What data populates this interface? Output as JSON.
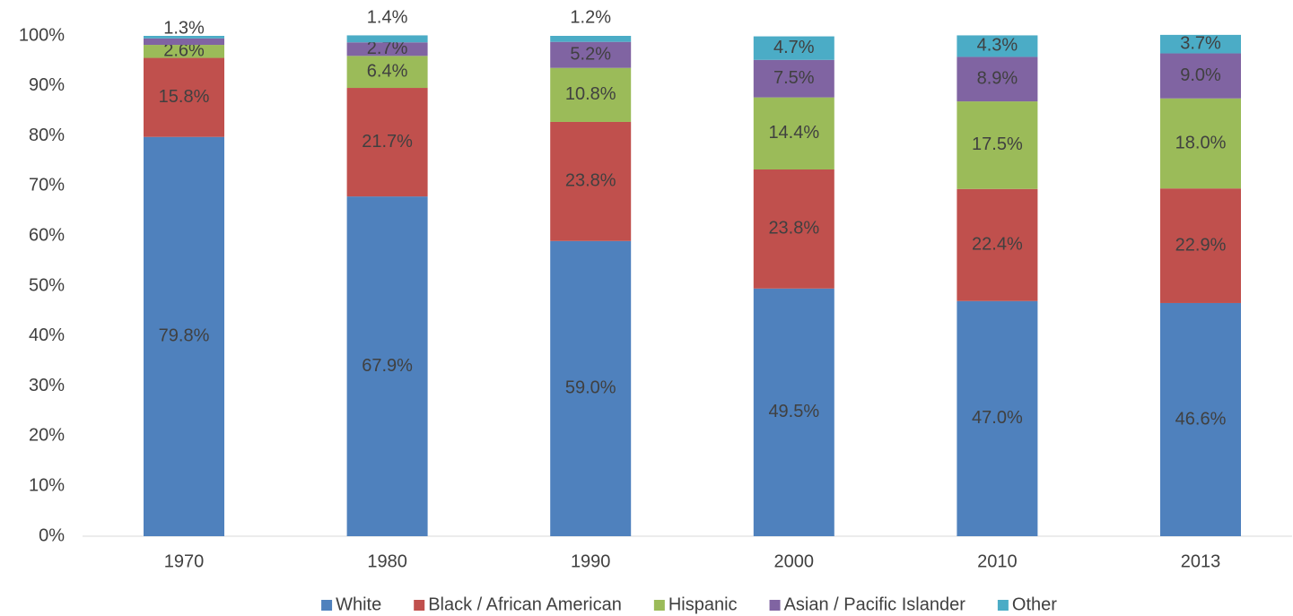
{
  "chart_data": {
    "type": "stacked_bar",
    "categories": [
      "1970",
      "1980",
      "1990",
      "2000",
      "2010",
      "2013"
    ],
    "series": [
      {
        "name": "White",
        "color": "#4f81bd",
        "values": [
          79.8,
          67.9,
          59.0,
          49.5,
          47.0,
          46.6
        ],
        "value_labels": [
          "79.8%",
          "67.9%",
          "59.0%",
          "49.5%",
          "47.0%",
          "46.6%"
        ]
      },
      {
        "name": "Black / African American",
        "color": "#c0504d",
        "values": [
          15.8,
          21.7,
          23.8,
          23.8,
          22.4,
          22.9
        ],
        "value_labels": [
          "15.8%",
          "21.7%",
          "23.8%",
          "23.8%",
          "22.4%",
          "22.9%"
        ]
      },
      {
        "name": "Hispanic",
        "color": "#9bbb59",
        "values": [
          2.6,
          6.4,
          10.8,
          14.4,
          17.5,
          18.0
        ],
        "value_labels": [
          "2.6%",
          "6.4%",
          "10.8%",
          "14.4%",
          "17.5%",
          "18.0%"
        ]
      },
      {
        "name": "Asian / Pacific Islander",
        "color": "#8064a2",
        "values": [
          1.3,
          2.7,
          5.2,
          7.5,
          8.9,
          9.0
        ],
        "value_labels": [
          "1.3%",
          "2.7%",
          "5.2%",
          "7.5%",
          "8.9%",
          "9.0%"
        ]
      },
      {
        "name": "Other",
        "color": "#4bacc6",
        "values": [
          0.5,
          1.4,
          1.2,
          4.7,
          4.3,
          3.7
        ],
        "value_labels": [
          null,
          "1.4%",
          "1.2%",
          "4.7%",
          "4.3%",
          "3.7%"
        ]
      }
    ],
    "ylim": [
      0,
      100
    ],
    "yticks": [
      {
        "value": 0,
        "label": "0%"
      },
      {
        "value": 10,
        "label": "10%"
      },
      {
        "value": 20,
        "label": "20%"
      },
      {
        "value": 30,
        "label": "30%"
      },
      {
        "value": 40,
        "label": "40%"
      },
      {
        "value": 50,
        "label": "50%"
      },
      {
        "value": 60,
        "label": "60%"
      },
      {
        "value": 70,
        "label": "70%"
      },
      {
        "value": 80,
        "label": "80%"
      },
      {
        "value": 90,
        "label": "90%"
      },
      {
        "value": 100,
        "label": "100%"
      }
    ],
    "grid": false,
    "legend": "bottom"
  }
}
